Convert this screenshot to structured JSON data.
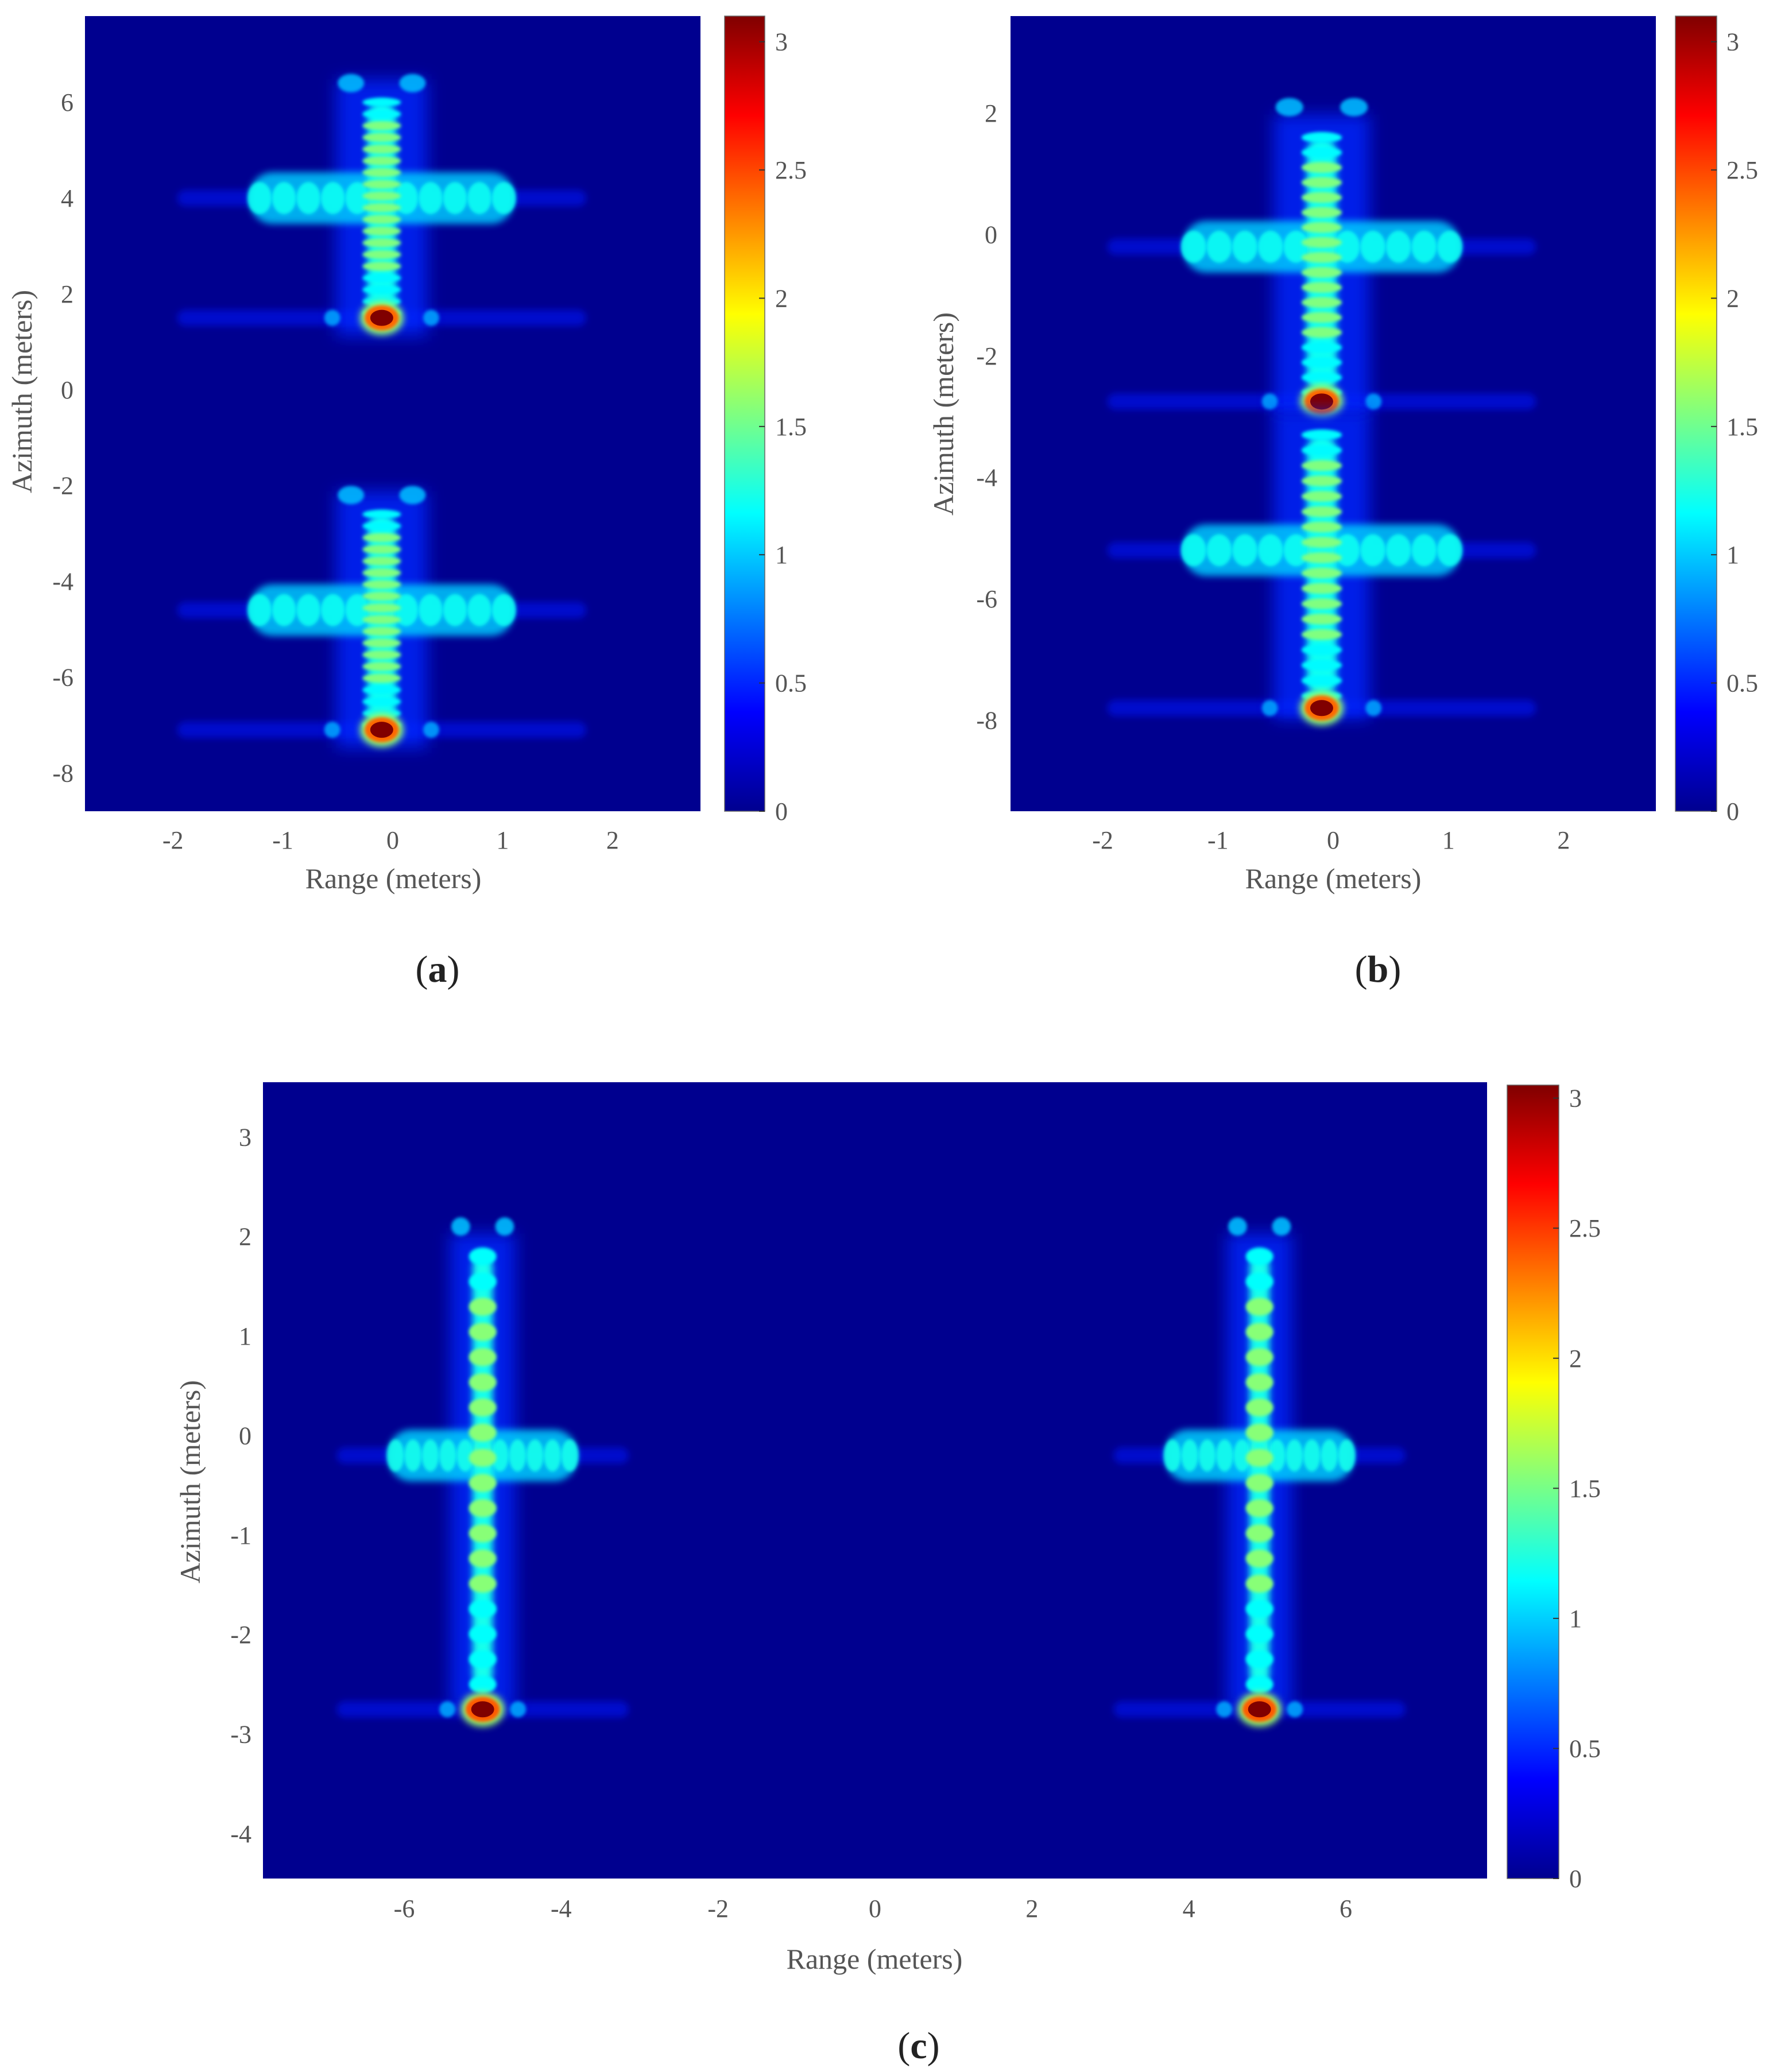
{
  "figure": {
    "captions": {
      "a": "a",
      "b": "b",
      "c": "c"
    }
  },
  "chart_data": [
    {
      "id": "a",
      "type": "heatmap",
      "caption": "a",
      "xlabel": "Range (meters)",
      "ylabel": "Azimuth (meters)",
      "xlim": [
        -2.8,
        2.8
      ],
      "ylim": [
        -8.8,
        7.8
      ],
      "xticks": [
        -2,
        -1,
        0,
        1,
        2
      ],
      "yticks": [
        -8,
        -6,
        -4,
        -2,
        0,
        2,
        4,
        6
      ],
      "colorbar": {
        "min": 0,
        "max": 3.1,
        "ticks": [
          0,
          0.5,
          1,
          1.5,
          2,
          2.5,
          3
        ],
        "colormap": "jet"
      },
      "targets": [
        {
          "x": -0.1,
          "center_y": 4.0,
          "top_y": 6.0,
          "bottom_y": 1.6,
          "arm_half_width": 1.2,
          "peak_y": 1.5,
          "peak_value": 3.1,
          "ears_y": 6.4
        },
        {
          "x": -0.1,
          "center_y": -4.6,
          "top_y": -2.6,
          "bottom_y": -7.0,
          "arm_half_width": 1.2,
          "peak_y": -7.1,
          "peak_value": 3.1,
          "ears_y": -2.2
        }
      ]
    },
    {
      "id": "b",
      "type": "heatmap",
      "caption": "b",
      "xlabel": "Range (meters)",
      "ylabel": "Azimuth (meters)",
      "xlim": [
        -2.8,
        2.8
      ],
      "ylim": [
        -9.5,
        3.6
      ],
      "xticks": [
        -2,
        -1,
        0,
        1,
        2
      ],
      "yticks": [
        -8,
        -6,
        -4,
        -2,
        0,
        2
      ],
      "colorbar": {
        "min": 0,
        "max": 3.1,
        "ticks": [
          0,
          0.5,
          1,
          1.5,
          2,
          2.5,
          3
        ],
        "colormap": "jet"
      },
      "targets": [
        {
          "x": -0.1,
          "center_y": -0.2,
          "top_y": 1.6,
          "bottom_y": -2.6,
          "arm_half_width": 1.2,
          "peak_y": -2.75,
          "peak_value": 3.1,
          "ears_y": 2.1
        },
        {
          "x": -0.1,
          "center_y": -5.2,
          "top_y": -3.3,
          "bottom_y": -7.6,
          "arm_half_width": 1.2,
          "peak_y": -7.8,
          "peak_value": 3.1,
          "ears_y": null
        }
      ]
    },
    {
      "id": "c",
      "type": "heatmap",
      "caption": "c",
      "xlabel": "Range (meters)",
      "ylabel": "Azimuth (meters)",
      "xlim": [
        -7.8,
        7.8
      ],
      "ylim": [
        -4.45,
        3.55
      ],
      "xticks": [
        -6,
        -4,
        -2,
        0,
        2,
        4,
        6
      ],
      "yticks": [
        -4,
        -3,
        -2,
        -1,
        0,
        1,
        2,
        3
      ],
      "colorbar": {
        "min": 0,
        "max": 3.05,
        "ticks": [
          0,
          0.5,
          1,
          1.5,
          2,
          2.5,
          3
        ],
        "colormap": "jet"
      },
      "targets": [
        {
          "x": -5.0,
          "center_y": -0.2,
          "top_y": 1.8,
          "bottom_y": -2.5,
          "arm_half_width": 1.2,
          "peak_y": -2.75,
          "peak_value": 3.05,
          "ears_y": 2.1
        },
        {
          "x": 4.9,
          "center_y": -0.2,
          "top_y": 1.8,
          "bottom_y": -2.5,
          "arm_half_width": 1.2,
          "peak_y": -2.75,
          "peak_value": 3.05,
          "ears_y": 2.1
        }
      ]
    }
  ]
}
